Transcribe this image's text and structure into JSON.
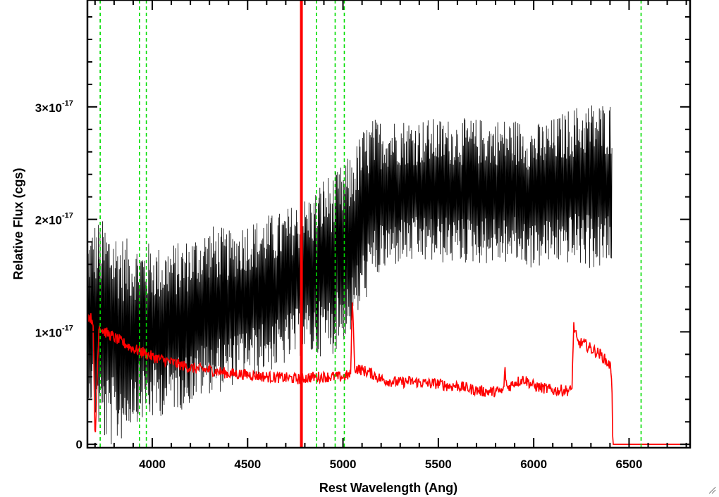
{
  "chart_data": {
    "type": "line",
    "xlabel": "Rest Wavelength (Ang)",
    "ylabel": "Relative Flux (cgs)",
    "xlim": [
      3660,
      6820
    ],
    "ylim": [
      -0.03,
      3.95
    ],
    "y_unit_exponent": -17,
    "x_ticks": [
      {
        "value": 4000,
        "label": "4000"
      },
      {
        "value": 4500,
        "label": "4500"
      },
      {
        "value": 5000,
        "label": "5000"
      },
      {
        "value": 5500,
        "label": "5500"
      },
      {
        "value": 6000,
        "label": "6000"
      },
      {
        "value": 6500,
        "label": "6500"
      }
    ],
    "y_ticks": [
      {
        "value": 0,
        "mantissa": "0",
        "exponent": ""
      },
      {
        "value": 1,
        "mantissa": "1×10",
        "exponent": "-17"
      },
      {
        "value": 2,
        "mantissa": "2×10",
        "exponent": "-17"
      },
      {
        "value": 3,
        "mantissa": "3×10",
        "exponent": "-17"
      }
    ],
    "vertical_lines": {
      "color": "#00dd00",
      "style": "dashed",
      "x": [
        3727,
        3933,
        3969,
        4861,
        4959,
        5007,
        6563
      ]
    },
    "red_spike": {
      "x": 4782,
      "y_top": 3.95,
      "color": "#ff0000"
    },
    "series": [
      {
        "color": "#000000",
        "x": [
          3660,
          3700,
          3750,
          3800,
          3850,
          3900,
          3950,
          4000,
          4050,
          4100,
          4150,
          4200,
          4250,
          4300,
          4350,
          4400,
          4450,
          4500,
          4550,
          4600,
          4650,
          4700,
          4750,
          4800,
          4850,
          4900,
          4950,
          5000,
          5050,
          5100,
          5150,
          5200,
          5300,
          5400,
          5500,
          5600,
          5700,
          5800,
          5900,
          6000,
          6100,
          6200,
          6300,
          6400
        ],
        "y_mean": [
          1.15,
          1.1,
          1.0,
          0.95,
          0.95,
          1.0,
          1.0,
          1.0,
          1.0,
          1.05,
          1.05,
          1.1,
          1.15,
          1.2,
          1.2,
          1.2,
          1.25,
          1.3,
          1.3,
          1.35,
          1.35,
          1.4,
          1.45,
          1.5,
          1.5,
          1.6,
          1.6,
          1.7,
          1.8,
          2.0,
          2.15,
          2.2,
          2.25,
          2.25,
          2.25,
          2.25,
          2.25,
          2.25,
          2.25,
          2.2,
          2.25,
          2.3,
          2.3,
          2.3
        ],
        "y_halfrange": [
          0.7,
          0.9,
          1.0,
          1.0,
          0.9,
          0.8,
          0.8,
          0.8,
          0.75,
          0.75,
          0.75,
          0.75,
          0.75,
          0.75,
          0.75,
          0.7,
          0.7,
          0.7,
          0.7,
          0.7,
          0.7,
          0.7,
          0.7,
          0.7,
          0.75,
          0.8,
          0.8,
          0.8,
          0.8,
          0.8,
          0.75,
          0.7,
          0.65,
          0.65,
          0.65,
          0.65,
          0.65,
          0.65,
          0.65,
          0.65,
          0.65,
          0.7,
          0.75,
          0.75
        ],
        "x_end": 6410
      },
      {
        "color": "#ff0000",
        "x": [
          3660,
          3690,
          3700,
          3720,
          3750,
          3800,
          3850,
          3900,
          3950,
          4000,
          4100,
          4200,
          4300,
          4400,
          4500,
          4600,
          4700,
          4780,
          4800,
          4850,
          4900,
          4950,
          5000,
          5040,
          5050,
          5060,
          5100,
          5150,
          5200,
          5250,
          5300,
          5350,
          5400,
          5450,
          5500,
          5550,
          5600,
          5650,
          5700,
          5750,
          5800,
          5840,
          5850,
          5860,
          5900,
          5950,
          6000,
          6050,
          6100,
          6150,
          6200,
          6210,
          6230,
          6260,
          6300,
          6350,
          6400,
          6410,
          6415,
          6820
        ],
        "y": [
          1.15,
          1.1,
          0.0,
          1.05,
          1.0,
          0.95,
          0.9,
          0.85,
          0.82,
          0.78,
          0.73,
          0.68,
          0.66,
          0.63,
          0.62,
          0.6,
          0.59,
          0.58,
          0.59,
          0.6,
          0.6,
          0.6,
          0.6,
          0.62,
          1.35,
          0.68,
          0.66,
          0.63,
          0.58,
          0.56,
          0.55,
          0.56,
          0.55,
          0.54,
          0.54,
          0.52,
          0.52,
          0.5,
          0.48,
          0.47,
          0.47,
          0.47,
          0.65,
          0.5,
          0.55,
          0.58,
          0.52,
          0.5,
          0.48,
          0.48,
          0.48,
          1.05,
          0.9,
          0.9,
          0.85,
          0.8,
          0.7,
          0.6,
          0.0,
          0.0
        ],
        "noise": 0.05
      }
    ]
  }
}
